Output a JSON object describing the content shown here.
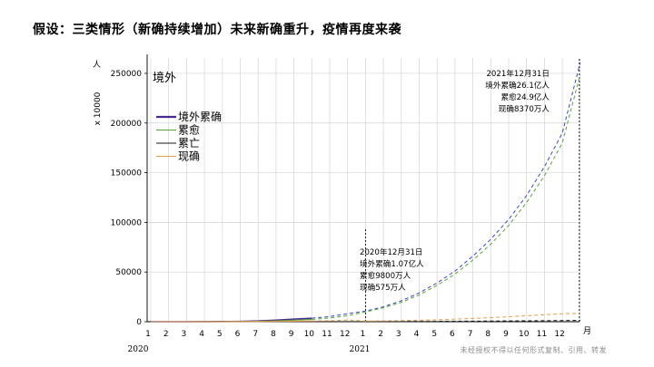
{
  "title": "假设：三类情形（新确持续增加）未来新确重升，疫情再度来袭",
  "footer_note": "未经授权不得以任何形式复制、引用、转发",
  "chart_data": {
    "type": "line",
    "region_label": "境外",
    "ylabel_unit": "人",
    "ylabel_scale": "x 10000",
    "x_unit": "月",
    "ylim": [
      0,
      260000
    ],
    "yticks": [
      "0",
      "50000",
      "100000",
      "150000",
      "200000",
      "250000"
    ],
    "xtick_labels": [
      "1",
      "2",
      "3",
      "4",
      "5",
      "6",
      "7",
      "8",
      "9",
      "10",
      "11",
      "12",
      "1",
      "2",
      "3",
      "4",
      "5",
      "6",
      "7",
      "8",
      "9",
      "10",
      "11",
      "12"
    ],
    "year_labels": [
      "2020",
      "2021"
    ],
    "legend": [
      "境外累确",
      "累愈",
      "累亡",
      "现确"
    ],
    "colors": {
      "cumulative": "#4a2a8e",
      "recovered": "#5a9e3a",
      "deaths": "#1a1a1a",
      "active": "#e89c4a",
      "projection_blue": "#3b46c4",
      "projection_green": "#58a83c"
    },
    "x": [
      1,
      2,
      3,
      4,
      5,
      6,
      7,
      8,
      9,
      10,
      11,
      12,
      13,
      14,
      15,
      16,
      17,
      18,
      19,
      20,
      21,
      22,
      23,
      24,
      25
    ],
    "series": [
      {
        "name": "境外累确",
        "values": [
          0,
          0,
          0,
          50,
          150,
          300,
          700,
          1600,
          2600,
          3500,
          5200,
          8000,
          10700,
          15000,
          21000,
          29000,
          39000,
          51000,
          66000,
          83000,
          103000,
          127000,
          156000,
          190000,
          261000
        ]
      },
      {
        "name": "累愈",
        "values": [
          0,
          0,
          0,
          30,
          100,
          200,
          400,
          900,
          1500,
          2300,
          3700,
          6000,
          9800,
          14000,
          19500,
          27000,
          36500,
          48000,
          62000,
          78000,
          97000,
          120000,
          147000,
          180000,
          249000
        ]
      },
      {
        "name": "累亡",
        "values": [
          0,
          0,
          0,
          5,
          10,
          20,
          40,
          60,
          80,
          100,
          120,
          150,
          180,
          220,
          270,
          330,
          400,
          480,
          570,
          670,
          780,
          900,
          1030,
          1170,
          1330
        ]
      },
      {
        "name": "现确",
        "values": [
          0,
          0,
          0,
          20,
          45,
          80,
          150,
          300,
          500,
          700,
          900,
          1700,
          575,
          800,
          1100,
          1500,
          2000,
          2600,
          3300,
          4100,
          5000,
          6000,
          7000,
          8000,
          8370
        ]
      }
    ],
    "annotations": [
      {
        "lines": [
          "2020年12月31日",
          "境外累确1.07亿人",
          "累愈9800万人",
          "现确575万人"
        ]
      },
      {
        "lines": [
          "2021年12月31日",
          "境外累确26.1亿人",
          "累愈24.9亿人",
          "现确8370万人"
        ]
      }
    ]
  }
}
